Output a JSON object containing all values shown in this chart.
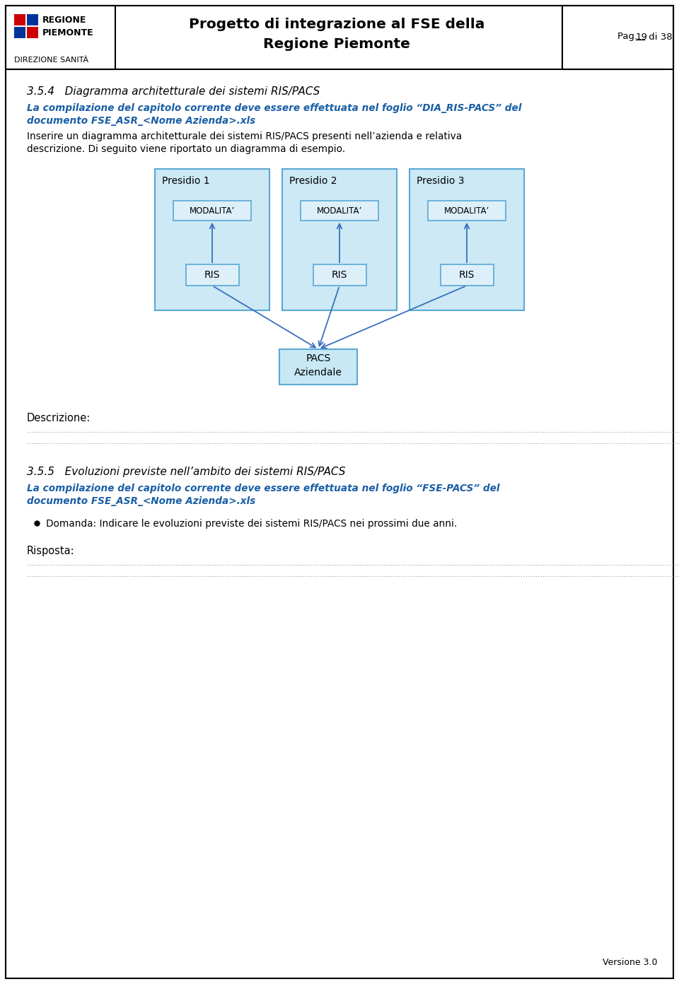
{
  "page_title_line1": "Progetto di integrazione al FSE della",
  "page_title_line2": "Regione Piemonte",
  "dir_label": "DIREZIONE SANITÀ",
  "section_title": "3.5.4   Diagramma architetturale dei sistemi RIS/PACS",
  "blue_italic_line1": "La compilazione del capitolo corrente deve essere effettuata nel foglio “DIA_RIS-PACS” del",
  "blue_italic_line2": "documento FSE_ASR_<Nome Azienda>.xls",
  "body_line1": "Inserire un diagramma architetturale dei sistemi RIS/PACS presenti nell’azienda e relativa",
  "body_line2": "descrizione. Di seguito viene riportato un diagramma di esempio.",
  "presidio_labels": [
    "Presidio 1",
    "Presidio 2",
    "Presidio 3"
  ],
  "modalita_label": "MODALITA’",
  "ris_label": "RIS",
  "pacs_label": "PACS\nAziendale",
  "descrizione_label": "Descrizione:",
  "dots_line": "…………………………………………………………………………………………………………………………………………………………………………………………………………………………………………………………………………",
  "section_title2": "3.5.5   Evoluzioni previste nell’ambito dei sistemi RIS/PACS",
  "blue_italic2_line1": "La compilazione del capitolo corrente deve essere effettuata nel foglio “FSE-PACS” del",
  "blue_italic2_line2": "documento FSE_ASR_<Nome Azienda>.xls",
  "bullet_text": "Domanda: Indicare le evoluzioni previste dei sistemi RIS/PACS nei prossimi due anni.",
  "risposta_label": "Risposta:",
  "versione_label": "Versione 3.0",
  "bg_color": "#ffffff",
  "box_outer_fill": "#cce9f5",
  "box_outer_border": "#5ba8d4",
  "box_inner_fill": "#ddf0fa",
  "box_inner_border": "#5ba8d4",
  "pacs_fill": "#c8e8f5",
  "pacs_border": "#5ba8d4",
  "arrow_color": "#3a6fbf",
  "blue_text_color": "#1a5fa6",
  "logo_red": "#cc0000",
  "logo_blue": "#003399"
}
